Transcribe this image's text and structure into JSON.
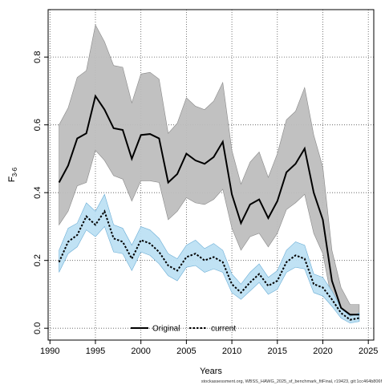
{
  "chart_data": {
    "type": "line",
    "xlabel": "Years",
    "ylabel": "F",
    "ylabel_subscript": "3-6",
    "xlim": [
      1989.8,
      2025.6
    ],
    "ylim": [
      -0.035,
      0.94
    ],
    "x_ticks": [
      1990,
      1995,
      2000,
      2005,
      2010,
      2015,
      2020,
      2025
    ],
    "y_ticks": [
      0.0,
      0.2,
      0.4,
      0.6,
      0.8
    ],
    "grid": true,
    "legend_position": "bottom-center",
    "footer": "stockassessment.org, WBSS_HAWG_2025_sf_benchmark_fitFinal, r19423, git:1cc464b806f",
    "x": [
      1991,
      1992,
      1993,
      1994,
      1995,
      1996,
      1997,
      1998,
      1999,
      2000,
      2001,
      2002,
      2003,
      2004,
      2005,
      2006,
      2007,
      2008,
      2009,
      2010,
      2011,
      2012,
      2013,
      2014,
      2015,
      2016,
      2017,
      2018,
      2019,
      2020,
      2021,
      2022,
      2023,
      2024
    ],
    "series": [
      {
        "name": "Original",
        "color": "#000000",
        "band_color": "#bebebe",
        "values": [
          0.43,
          0.48,
          0.56,
          0.575,
          0.685,
          0.645,
          0.59,
          0.585,
          0.5,
          0.57,
          0.573,
          0.56,
          0.43,
          0.455,
          0.515,
          0.495,
          0.485,
          0.505,
          0.55,
          0.395,
          0.31,
          0.365,
          0.38,
          0.325,
          0.375,
          0.46,
          0.485,
          0.53,
          0.4,
          0.32,
          0.14,
          0.06,
          0.04,
          0.04
        ],
        "lower": [
          0.305,
          0.345,
          0.42,
          0.43,
          0.525,
          0.495,
          0.45,
          0.44,
          0.375,
          0.435,
          0.435,
          0.43,
          0.32,
          0.345,
          0.385,
          0.37,
          0.365,
          0.38,
          0.41,
          0.295,
          0.23,
          0.27,
          0.28,
          0.24,
          0.28,
          0.35,
          0.37,
          0.395,
          0.28,
          0.22,
          0.08,
          0.03,
          0.02,
          0.02
        ],
        "upper": [
          0.6,
          0.65,
          0.74,
          0.76,
          0.895,
          0.845,
          0.775,
          0.77,
          0.665,
          0.75,
          0.755,
          0.735,
          0.575,
          0.605,
          0.68,
          0.655,
          0.645,
          0.67,
          0.725,
          0.525,
          0.425,
          0.49,
          0.52,
          0.445,
          0.515,
          0.615,
          0.64,
          0.71,
          0.57,
          0.475,
          0.23,
          0.12,
          0.07,
          0.07
        ]
      },
      {
        "name": "current",
        "color": "#000000",
        "line_style": "dashed",
        "band_color": "#bde0f3",
        "band_edge": "#6baed6",
        "values": [
          0.195,
          0.255,
          0.275,
          0.33,
          0.305,
          0.345,
          0.265,
          0.255,
          0.205,
          0.26,
          0.25,
          0.225,
          0.185,
          0.17,
          0.21,
          0.22,
          0.2,
          0.21,
          0.195,
          0.13,
          0.105,
          0.135,
          0.16,
          0.125,
          0.14,
          0.195,
          0.215,
          0.205,
          0.13,
          0.12,
          0.085,
          0.045,
          0.025,
          0.03
        ],
        "lower": [
          0.165,
          0.22,
          0.24,
          0.29,
          0.27,
          0.3,
          0.225,
          0.22,
          0.17,
          0.225,
          0.215,
          0.19,
          0.155,
          0.14,
          0.18,
          0.185,
          0.165,
          0.175,
          0.165,
          0.105,
          0.085,
          0.11,
          0.135,
          0.1,
          0.115,
          0.165,
          0.18,
          0.175,
          0.105,
          0.095,
          0.065,
          0.03,
          0.015,
          0.02
        ],
        "upper": [
          0.23,
          0.295,
          0.31,
          0.37,
          0.345,
          0.395,
          0.305,
          0.295,
          0.245,
          0.3,
          0.29,
          0.265,
          0.22,
          0.205,
          0.245,
          0.26,
          0.235,
          0.25,
          0.23,
          0.16,
          0.13,
          0.165,
          0.19,
          0.15,
          0.17,
          0.23,
          0.255,
          0.245,
          0.16,
          0.15,
          0.11,
          0.06,
          0.035,
          0.045
        ]
      }
    ]
  }
}
